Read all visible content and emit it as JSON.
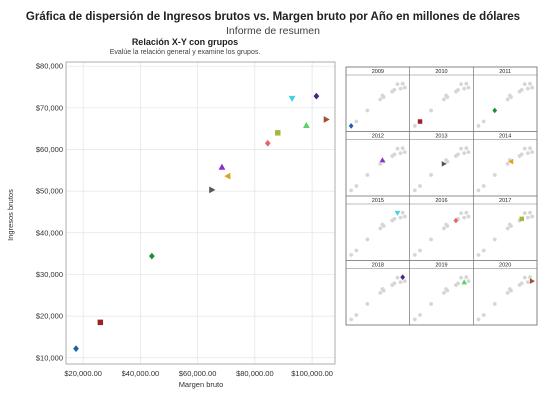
{
  "header": {
    "title": "Gráfica de dispersión de Ingresos brutos vs. Margen bruto por Año en millones de dólares",
    "subtitle": "Informe de resumen",
    "panel_title": "Relación X-Y con grupos",
    "panel_subtitle": "Evalúe la relación general y examine los grupos."
  },
  "chart_data": [
    {
      "type": "scatter",
      "xlabel": "Margen bruto",
      "ylabel": "Ingresos brutos",
      "xlim": [
        14000,
        108000
      ],
      "ylim": [
        8500,
        81000
      ],
      "xticks": [
        20000,
        40000,
        60000,
        80000,
        100000
      ],
      "xtick_labels": [
        "$20,000.00",
        "$40,000.00",
        "$60,000.00",
        "$80,000.00",
        "$100,000.00"
      ],
      "yticks": [
        10000,
        20000,
        30000,
        40000,
        50000,
        60000,
        70000,
        80000
      ],
      "ytick_labels": [
        "$10,000",
        "$20,000",
        "$30,000",
        "$40,000",
        "$50,000",
        "$60,000",
        "$70,000",
        "$80,000"
      ],
      "grid": true,
      "series": [
        {
          "name": "2009",
          "color": "#1f5fa8",
          "marker": "diamond",
          "x": 17500,
          "y": 12200
        },
        {
          "name": "2010",
          "color": "#a31e22",
          "marker": "square",
          "x": 26000,
          "y": 18500
        },
        {
          "name": "2011",
          "color": "#1e8e3e",
          "marker": "diamond",
          "x": 44000,
          "y": 34400
        },
        {
          "name": "2012",
          "color": "#8b2fc9",
          "marker": "triangle-up",
          "x": 68500,
          "y": 55800
        },
        {
          "name": "2013",
          "color": "#555555",
          "marker": "triangle-right",
          "x": 65000,
          "y": 50300
        },
        {
          "name": "2014",
          "color": "#e0a020",
          "marker": "triangle-left",
          "x": 70500,
          "y": 53600
        },
        {
          "name": "2015",
          "color": "#3fd3e8",
          "marker": "triangle-down",
          "x": 93000,
          "y": 72200
        },
        {
          "name": "2016",
          "color": "#e8646a",
          "marker": "diamond",
          "x": 84500,
          "y": 61500
        },
        {
          "name": "2017",
          "color": "#a8b43a",
          "marker": "square",
          "x": 88000,
          "y": 64000
        },
        {
          "name": "2018",
          "color": "#4b2488",
          "marker": "diamond",
          "x": 101500,
          "y": 72800
        },
        {
          "name": "2019",
          "color": "#5ad36a",
          "marker": "triangle-up",
          "x": 98000,
          "y": 65800
        },
        {
          "name": "2020",
          "color": "#a0502a",
          "marker": "triangle-right",
          "x": 105000,
          "y": 67200
        }
      ]
    },
    {
      "type": "scatter",
      "layout": "small-multiples",
      "columns": 3,
      "facets": [
        "2009",
        "2010",
        "2011",
        "2012",
        "2013",
        "2014",
        "2015",
        "2016",
        "2017",
        "2018",
        "2019",
        "2020"
      ],
      "background_color": "#d6d6d6"
    }
  ]
}
